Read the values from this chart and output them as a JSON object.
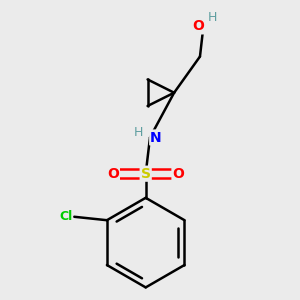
{
  "bg_color": "#ebebeb",
  "atom_colors": {
    "C": "#000000",
    "H": "#5f9ea0",
    "N": "#0000ff",
    "O": "#ff0000",
    "S": "#cccc00",
    "Cl": "#00cc00"
  },
  "bond_color": "#000000",
  "bond_width": 1.8,
  "fig_size": [
    3.0,
    3.0
  ],
  "dpi": 100
}
